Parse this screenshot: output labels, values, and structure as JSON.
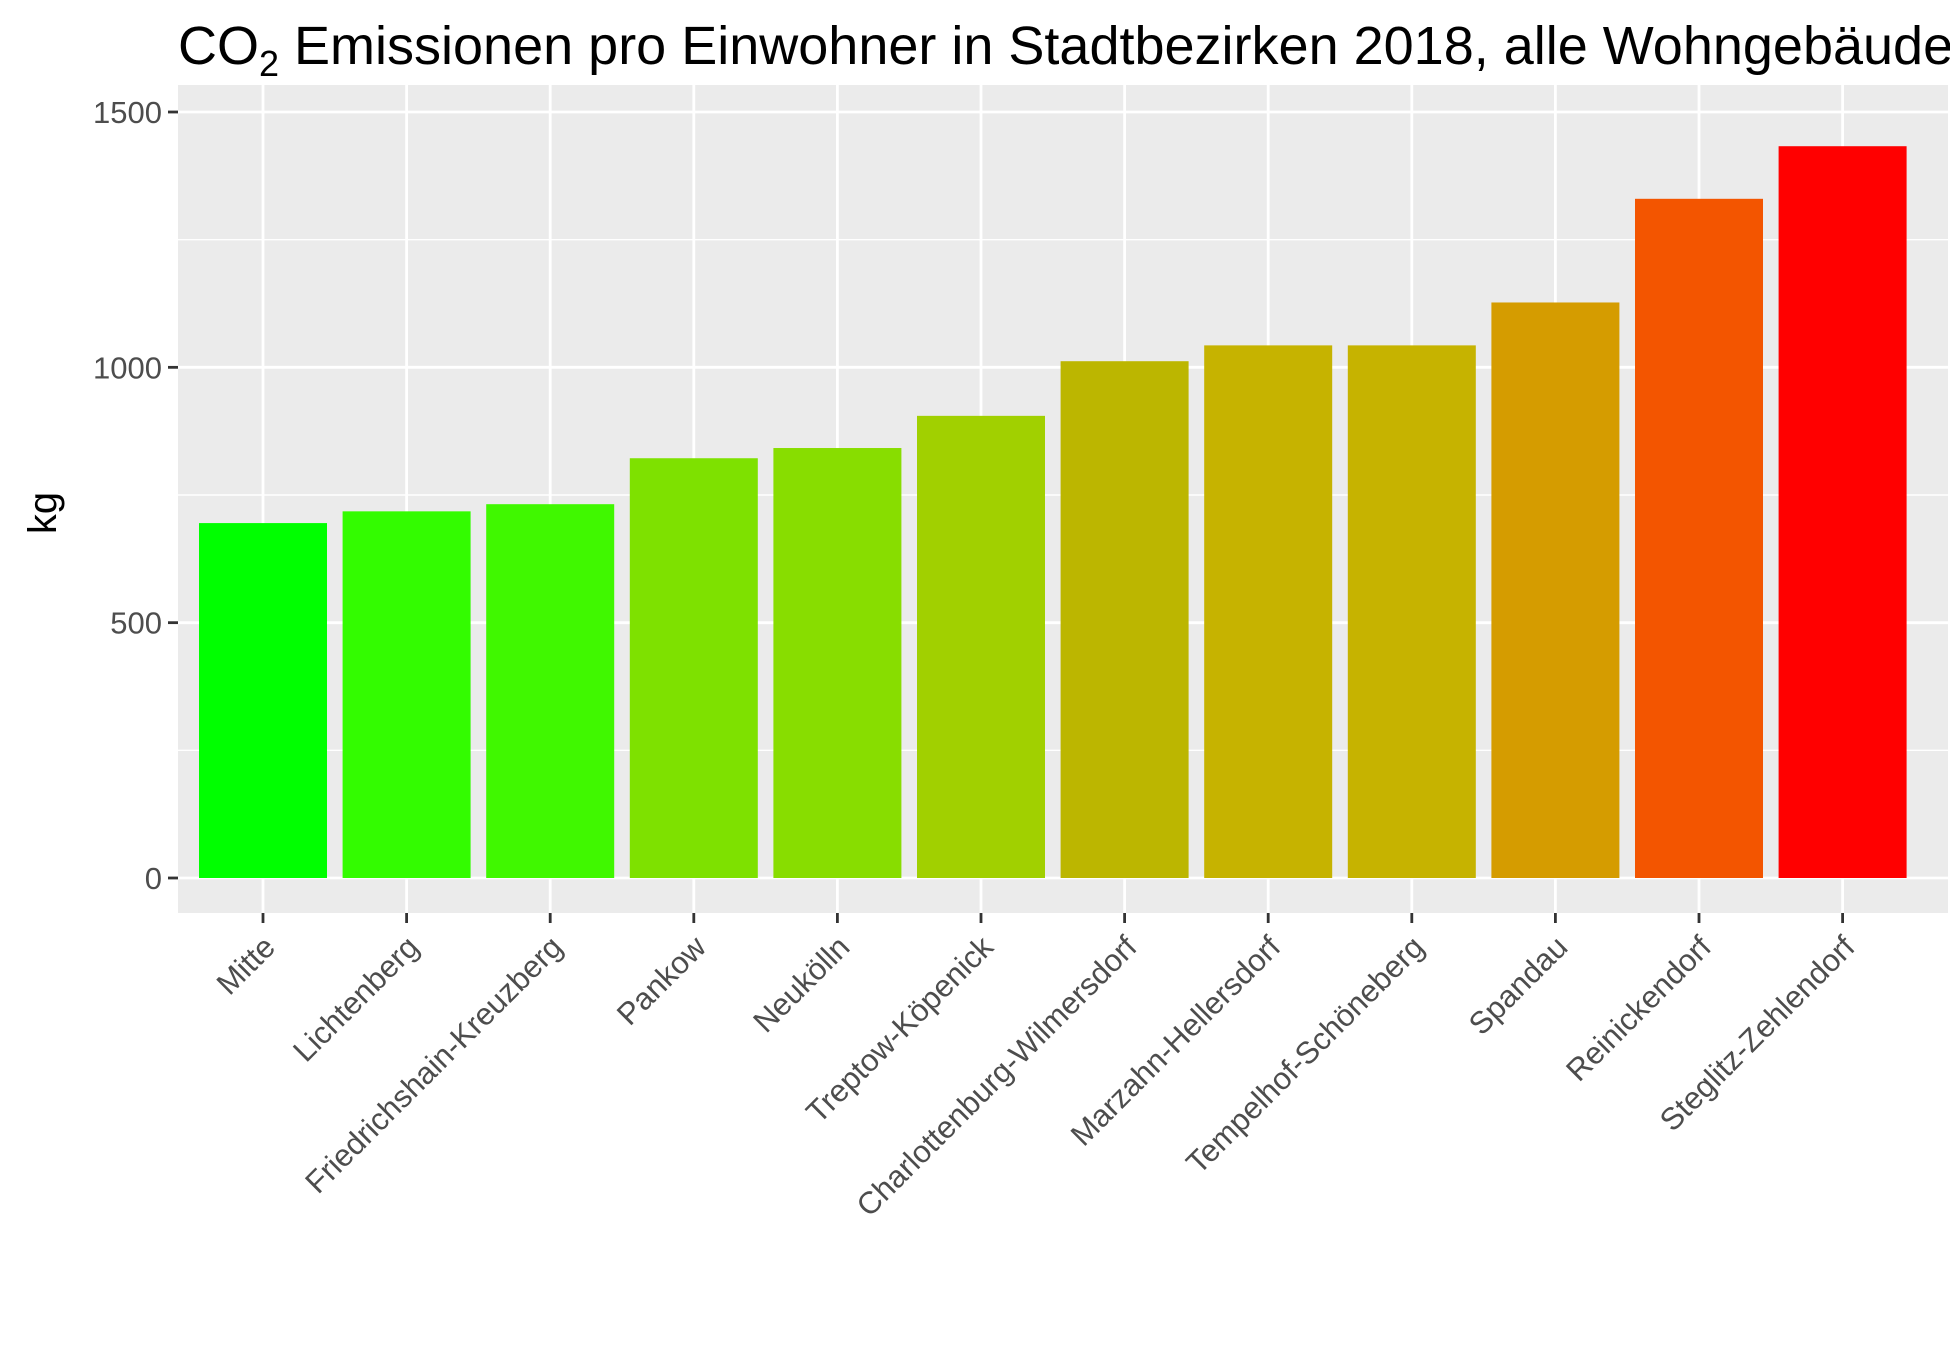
{
  "chart_data": {
    "type": "bar",
    "title_main": "CO",
    "title_sub": "2",
    "title_rest": " Emissionen pro Einwohner in Stadtbezirken 2018, alle Wohngebäude",
    "xlabel": "",
    "ylabel": "kg",
    "ylim": [
      0,
      1500
    ],
    "yticks": [
      0,
      500,
      1000,
      1500
    ],
    "grid": true,
    "legend": "none",
    "categories": [
      "Mitte",
      "Lichtenberg",
      "Friedrichshain-Kreuzberg",
      "Pankow",
      "Neukölln",
      "Treptow-Köpenick",
      "Charlottenburg-Wilmersdorf",
      "Marzahn-Hellersdorf",
      "Tempelhof-Schöneberg",
      "Spandau",
      "Reinickendorf",
      "Steglitz-Zehlendorf"
    ],
    "values": [
      695,
      718,
      732,
      822,
      842,
      905,
      1012,
      1043,
      1043,
      1127,
      1330,
      1433
    ],
    "colors": [
      "#00ff00",
      "#33fc00",
      "#40f800",
      "#7ee100",
      "#88dd00",
      "#a1d000",
      "#bcb600",
      "#c6b300",
      "#c6b300",
      "#d59c00",
      "#f35500",
      "#ff0000"
    ]
  }
}
